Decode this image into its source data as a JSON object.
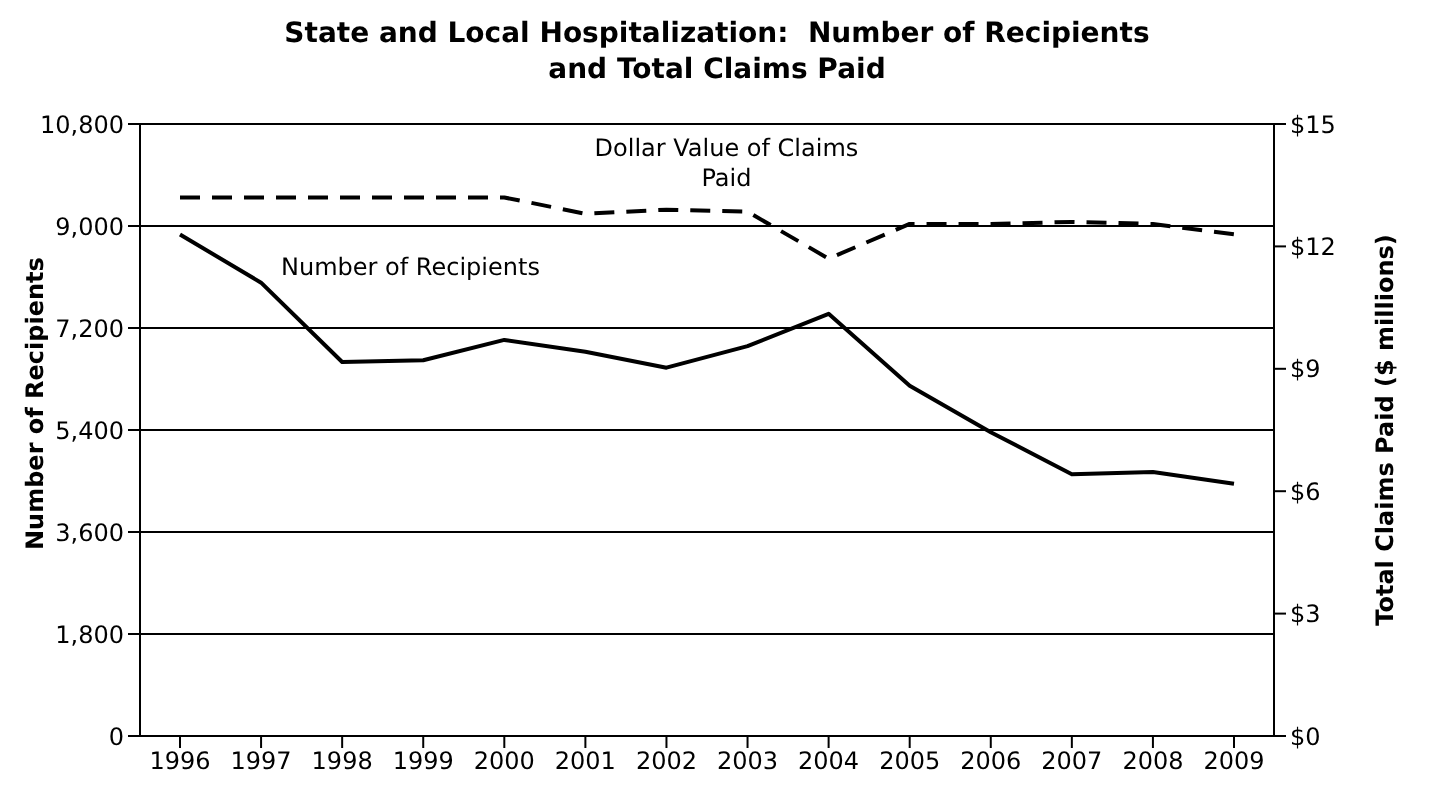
{
  "chart_data": {
    "type": "line",
    "title": "State and Local Hospitalization:  Number of Recipients\nand Total Claims Paid",
    "ylabel": "Number of Recipients",
    "y2label": "Total Claims Paid ($ millions)",
    "categories": [
      "1996",
      "1997",
      "1998",
      "1999",
      "2000",
      "2001",
      "2002",
      "2003",
      "2004",
      "2005",
      "2006",
      "2007",
      "2008",
      "2009"
    ],
    "series": [
      {
        "name": "Number of Recipients",
        "color": "#000000",
        "line_style": "solid",
        "values": [
          8850,
          8000,
          6600,
          6630,
          6990,
          6780,
          6500,
          6880,
          7450,
          6180,
          5360,
          4620,
          4660,
          4450
        ]
      },
      {
        "name": "Dollar Value of Claims Paid",
        "color": "#000000",
        "line_style": "dashed",
        "axis": "y2",
        "values": [
          13.2,
          13.2,
          13.2,
          13.2,
          13.2,
          12.8,
          12.9,
          12.85,
          11.7,
          12.55,
          12.55,
          12.6,
          12.55,
          12.3
        ]
      }
    ],
    "ylim": [
      0,
      10800
    ],
    "yticks": [
      {
        "value": 0,
        "label": "0"
      },
      {
        "value": 1800,
        "label": "1,800"
      },
      {
        "value": 3600,
        "label": "3,600"
      },
      {
        "value": 5400,
        "label": "5,400"
      },
      {
        "value": 7200,
        "label": "7,200"
      },
      {
        "value": 9000,
        "label": "9,000"
      },
      {
        "value": 10800,
        "label": "10,800"
      }
    ],
    "y2lim": [
      0,
      15
    ],
    "y2ticks": [
      {
        "value": 0,
        "label": "$0"
      },
      {
        "value": 3,
        "label": "$3"
      },
      {
        "value": 6,
        "label": "$6"
      },
      {
        "value": 9,
        "label": "$9"
      },
      {
        "value": 12,
        "label": "$12"
      },
      {
        "value": 15,
        "label": "$15"
      }
    ],
    "grid": "y",
    "legend": false,
    "marker": "none"
  }
}
